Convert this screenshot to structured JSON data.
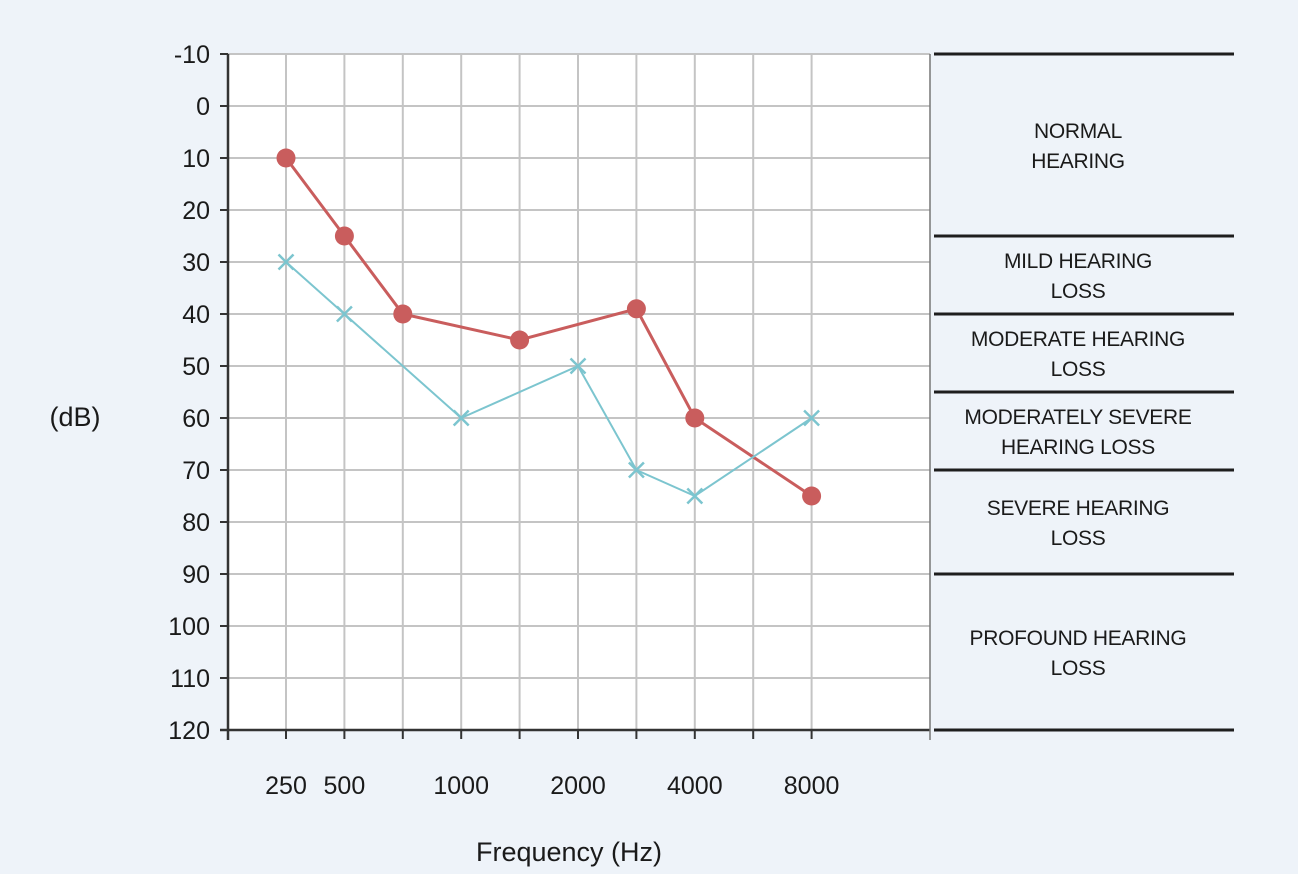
{
  "chart_data": {
    "type": "line",
    "xlabel": "Frequency (Hz)",
    "ylabel": "(dB)",
    "y_inverted": true,
    "ylim": [
      -10,
      120
    ],
    "ytick_step": 10,
    "grid": true,
    "x_positions": [
      250,
      500,
      750,
      1000,
      1500,
      2000,
      3000,
      4000,
      6000,
      8000
    ],
    "x_tick_labels": [
      "250",
      "500",
      "1000",
      "2000",
      "4000",
      "8000"
    ],
    "x_labeled_values": [
      250,
      500,
      1000,
      2000,
      4000,
      8000
    ],
    "series": [
      {
        "marker": "circle",
        "color": "#c95d5d",
        "x": [
          250,
          500,
          750,
          1500,
          3000,
          4000,
          8000
        ],
        "y": [
          10,
          25,
          40,
          45,
          39,
          60,
          75
        ]
      },
      {
        "marker": "x",
        "color": "#7cc5cf",
        "x": [
          250,
          500,
          1000,
          2000,
          3000,
          4000,
          8000
        ],
        "y": [
          30,
          40,
          60,
          50,
          70,
          75,
          60
        ]
      }
    ],
    "categories": [
      {
        "lines": [
          "NORMAL",
          "HEARING"
        ],
        "from": -10,
        "to": 25
      },
      {
        "lines": [
          "MILD HEARING",
          "LOSS"
        ],
        "from": 25,
        "to": 40
      },
      {
        "lines": [
          "MODERATE HEARING",
          "LOSS"
        ],
        "from": 40,
        "to": 55
      },
      {
        "lines": [
          "MODERATELY SEVERE",
          "HEARING LOSS"
        ],
        "from": 55,
        "to": 70
      },
      {
        "lines": [
          "SEVERE HEARING",
          "LOSS"
        ],
        "from": 70,
        "to": 90
      },
      {
        "lines": [
          "PROFOUND HEARING",
          "LOSS"
        ],
        "from": 90,
        "to": 120
      }
    ]
  }
}
